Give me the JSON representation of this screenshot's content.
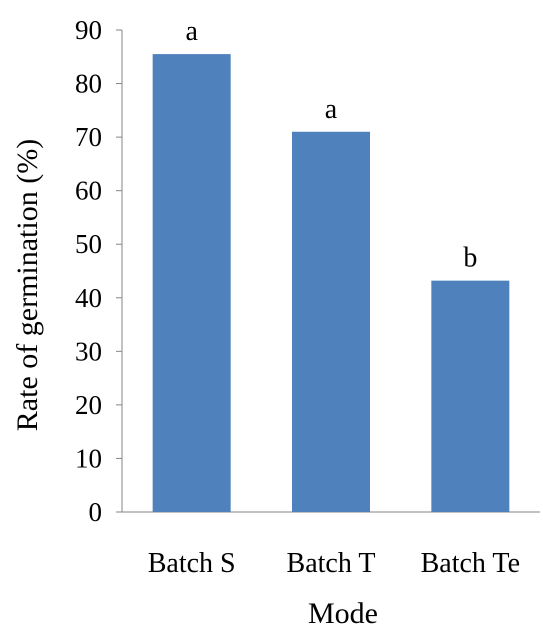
{
  "chart_data": {
    "type": "bar",
    "categories": [
      "Batch S",
      "Batch T",
      "Batch Te"
    ],
    "values": [
      85.5,
      71,
      43.2
    ],
    "significance_labels": [
      "a",
      "a",
      "b"
    ],
    "xlabel": "Mode",
    "ylabel": "Rate of germination (%)",
    "ylim": [
      0,
      90
    ],
    "yticks": [
      "0",
      "10",
      "20",
      "30",
      "40",
      "50",
      "60",
      "70",
      "80",
      "90"
    ],
    "grid": false,
    "bar_color": "#4F81BD"
  }
}
